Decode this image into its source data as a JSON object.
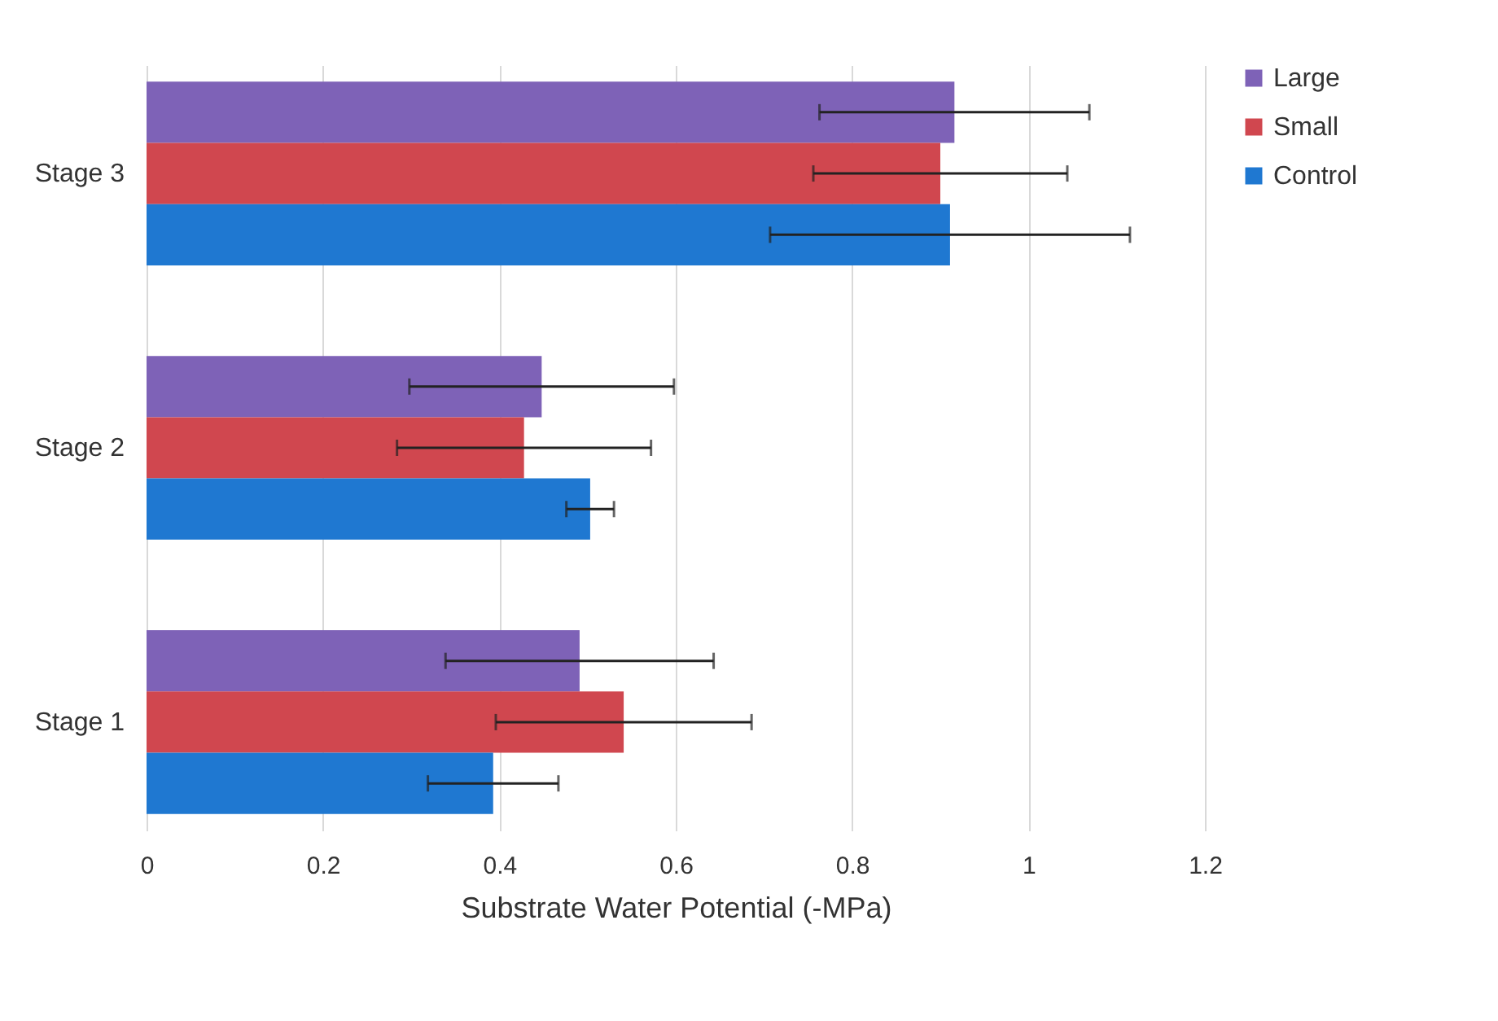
{
  "chart_data": {
    "type": "bar",
    "orientation": "horizontal",
    "xlabel": "Substrate Water Potential (-MPa)",
    "categories": [
      "Stage 3",
      "Stage 2",
      "Stage 1"
    ],
    "series": [
      {
        "name": "Large",
        "color": "#7e62b7",
        "values": [
          0.916,
          0.448,
          0.491
        ],
        "errors": [
          0.153,
          0.15,
          0.152
        ]
      },
      {
        "name": "Small",
        "color": "#d0474f",
        "values": [
          0.9,
          0.428,
          0.541
        ],
        "errors": [
          0.144,
          0.144,
          0.145
        ]
      },
      {
        "name": "Control",
        "color": "#1f78d1",
        "values": [
          0.911,
          0.503,
          0.393
        ],
        "errors": [
          0.204,
          0.027,
          0.074
        ]
      }
    ],
    "xlim": [
      0,
      1.2
    ],
    "xticks": [
      0,
      0.2,
      0.4,
      0.6,
      0.8,
      1,
      1.2
    ],
    "grid": "x",
    "legend": "right"
  }
}
